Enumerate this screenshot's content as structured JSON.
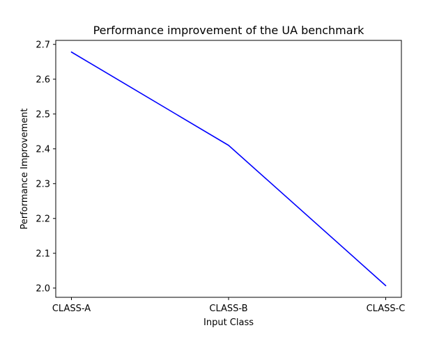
{
  "chart_data": {
    "type": "line",
    "title": "Performance improvement of the UA benchmark",
    "xlabel": "Input Class",
    "ylabel": "Performance Improvement",
    "categories": [
      "CLASS-A",
      "CLASS-B",
      "CLASS-C"
    ],
    "series": [
      {
        "values": [
          2.678,
          2.41,
          2.007
        ],
        "color": "#0000ff"
      }
    ],
    "ylim": [
      1.9735,
      2.7115
    ],
    "yticks": [
      2.0,
      2.1,
      2.2,
      2.3,
      2.4,
      2.5,
      2.6,
      2.7
    ],
    "ytick_labels": [
      "2.0",
      "2.1",
      "2.2",
      "2.3",
      "2.4",
      "2.5",
      "2.6",
      "2.7"
    ],
    "grid": false,
    "legend": false
  }
}
